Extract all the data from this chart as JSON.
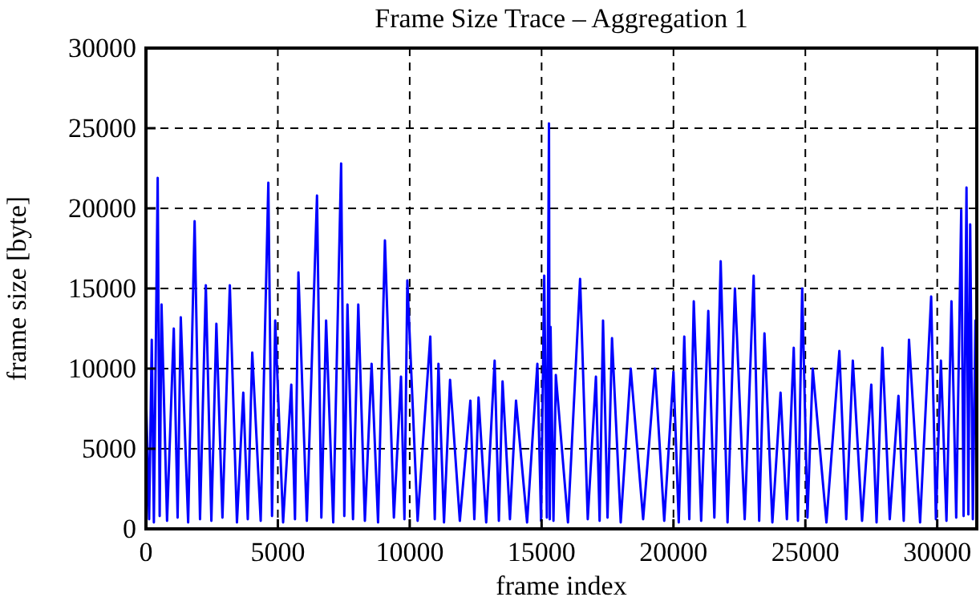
{
  "chart_data": {
    "type": "line",
    "title": "Frame Size Trace – Aggregation 1",
    "xlabel": "frame index",
    "ylabel": "frame size [byte]",
    "x": [
      0,
      120,
      220,
      300,
      445,
      520,
      590,
      800,
      1055,
      1200,
      1320,
      1600,
      1845,
      2050,
      2270,
      2480,
      2670,
      2900,
      3180,
      3450,
      3690,
      3860,
      4030,
      4350,
      4640,
      4780,
      4900,
      5200,
      5510,
      5650,
      5780,
      6100,
      6485,
      6650,
      6830,
      7100,
      7400,
      7520,
      7640,
      7850,
      8050,
      8300,
      8555,
      8800,
      9060,
      9400,
      9670,
      9800,
      9910,
      10300,
      10780,
      10950,
      11090,
      11300,
      11530,
      11900,
      12300,
      12450,
      12610,
      12900,
      13220,
      13380,
      13520,
      13800,
      14030,
      14450,
      14840,
      14980,
      15100,
      15200,
      15280,
      15310,
      15340,
      15450,
      15540,
      16000,
      16460,
      16750,
      17060,
      17200,
      17330,
      17500,
      17670,
      18000,
      18380,
      18850,
      19300,
      19650,
      20000,
      20200,
      20410,
      20600,
      20770,
      21050,
      21320,
      21550,
      21790,
      22050,
      22330,
      22700,
      23040,
      23250,
      23450,
      23750,
      24060,
      24300,
      24560,
      24720,
      24880,
      25080,
      25280,
      25800,
      26290,
      26550,
      26800,
      27150,
      27500,
      27700,
      27920,
      28200,
      28530,
      28730,
      28930,
      29350,
      29770,
      29950,
      30140,
      30350,
      30540,
      30720,
      30910,
      31000,
      31110,
      31180,
      31250,
      31350,
      31450,
      31500
    ],
    "series": [
      {
        "color": "#0000ff",
        "values": [
          8500,
          600,
          11800,
          400,
          21900,
          800,
          14000,
          500,
          12500,
          700,
          13200,
          400,
          19200,
          600,
          15200,
          500,
          12800,
          700,
          15200,
          400,
          8500,
          600,
          11000,
          500,
          21600,
          800,
          13000,
          400,
          9000,
          600,
          16000,
          500,
          20800,
          700,
          13000,
          400,
          22800,
          800,
          14000,
          600,
          14000,
          500,
          10300,
          400,
          18000,
          700,
          9500,
          600,
          15500,
          500,
          12000,
          600,
          10300,
          400,
          9300,
          500,
          8000,
          600,
          8200,
          400,
          10500,
          500,
          9200,
          600,
          8000,
          400,
          10300,
          500,
          15800,
          700,
          25300,
          600,
          12600,
          500,
          9600,
          400,
          15600,
          600,
          9500,
          500,
          13000,
          700,
          11900,
          400,
          10000,
          600,
          10000,
          500,
          9800,
          400,
          12000,
          600,
          14200,
          500,
          13600,
          700,
          16700,
          400,
          15000,
          600,
          15800,
          500,
          12200,
          400,
          8500,
          600,
          11300,
          500,
          15000,
          700,
          10000,
          400,
          11100,
          600,
          10500,
          500,
          9000,
          400,
          11300,
          600,
          8300,
          500,
          11800,
          400,
          14500,
          600,
          10500,
          500,
          14200,
          700,
          19900,
          800,
          21300,
          900,
          19000,
          600,
          13000,
          5000
        ]
      }
    ],
    "xlim": [
      0,
      31500
    ],
    "ylim": [
      0,
      30000
    ],
    "xticks": [
      0,
      5000,
      10000,
      15000,
      20000,
      25000,
      30000
    ],
    "yticks": [
      0,
      5000,
      10000,
      15000,
      20000,
      25000,
      30000
    ],
    "grid": true
  }
}
